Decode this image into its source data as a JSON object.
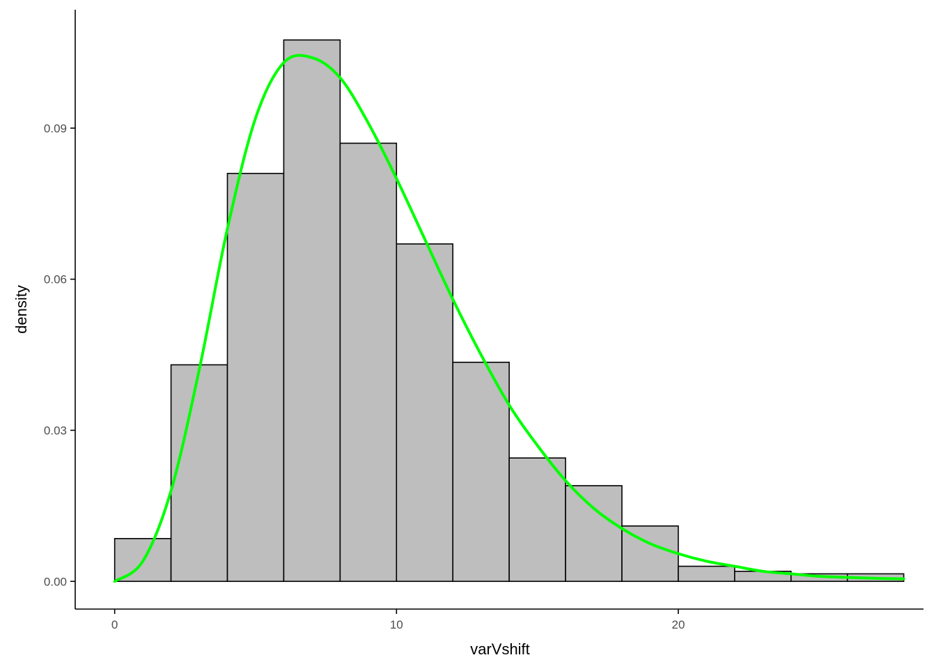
{
  "chart_data": {
    "type": "bar",
    "subtype": "histogram-with-density-curve",
    "title": "",
    "xlabel": "varVshift",
    "ylabel": "density",
    "xlim": [
      -1.4,
      28.7
    ],
    "ylim": [
      -0.0055,
      0.1135
    ],
    "x_ticks": [
      0,
      10,
      20
    ],
    "x_tick_labels": [
      "0",
      "10",
      "20"
    ],
    "y_ticks": [
      0,
      0.03,
      0.06,
      0.09
    ],
    "y_tick_labels": [
      "0.00",
      "0.03",
      "0.06",
      "0.09"
    ],
    "grid": false,
    "legend": "none",
    "bin_width": 2,
    "bins": [
      {
        "x0": 0,
        "x1": 2,
        "density": 0.0085
      },
      {
        "x0": 2,
        "x1": 4,
        "density": 0.043
      },
      {
        "x0": 4,
        "x1": 6,
        "density": 0.081
      },
      {
        "x0": 6,
        "x1": 8,
        "density": 0.1075
      },
      {
        "x0": 8,
        "x1": 10,
        "density": 0.087
      },
      {
        "x0": 10,
        "x1": 12,
        "density": 0.067
      },
      {
        "x0": 12,
        "x1": 14,
        "density": 0.0435
      },
      {
        "x0": 14,
        "x1": 16,
        "density": 0.0245
      },
      {
        "x0": 16,
        "x1": 18,
        "density": 0.019
      },
      {
        "x0": 18,
        "x1": 20,
        "density": 0.011
      },
      {
        "x0": 20,
        "x1": 22,
        "density": 0.003
      },
      {
        "x0": 22,
        "x1": 24,
        "density": 0.002
      },
      {
        "x0": 24,
        "x1": 26,
        "density": 0.0015
      },
      {
        "x0": 26,
        "x1": 28,
        "density": 0.0015
      }
    ],
    "density_curve": {
      "x": [
        0,
        1,
        2,
        3,
        4,
        5,
        6,
        7,
        8,
        9,
        10,
        11,
        12,
        13,
        14,
        15,
        16,
        17,
        18,
        19,
        20,
        21,
        22,
        23,
        24,
        25,
        26,
        27,
        28
      ],
      "y": [
        0.0,
        0.004,
        0.018,
        0.042,
        0.07,
        0.092,
        0.103,
        0.104,
        0.1,
        0.091,
        0.08,
        0.068,
        0.056,
        0.045,
        0.035,
        0.027,
        0.02,
        0.0145,
        0.0105,
        0.0075,
        0.0055,
        0.004,
        0.003,
        0.002,
        0.0015,
        0.001,
        0.0008,
        0.0006,
        0.0005
      ]
    },
    "colors": {
      "bar_fill": "#bebebe",
      "bar_stroke": "#000000",
      "curve": "#00ff00",
      "axis": "#000000",
      "tick_label": "#4d4d4d"
    }
  }
}
